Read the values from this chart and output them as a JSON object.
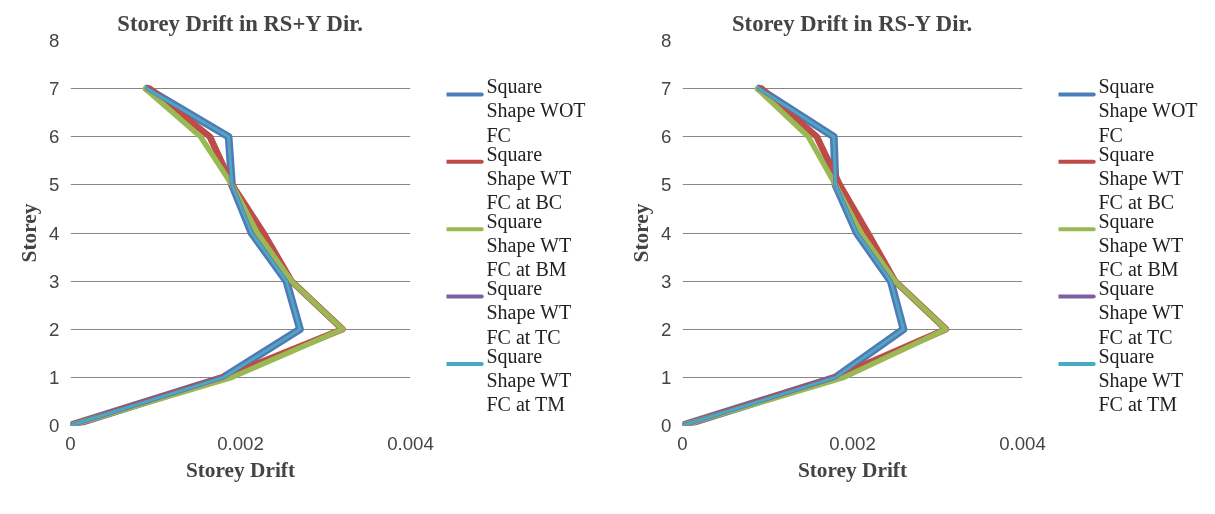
{
  "chart_data": [
    {
      "type": "line",
      "title": "Storey Drift in RS+Y Dir.",
      "xlabel": "Storey Drift",
      "ylabel": "Storey",
      "x": [
        0,
        1,
        2,
        3,
        4,
        5,
        6,
        7
      ],
      "xlim": [
        0,
        0.004
      ],
      "xticks": [
        0,
        0.002,
        0.004
      ],
      "ylim": [
        0,
        8
      ],
      "yticks": [
        0,
        1,
        2,
        3,
        4,
        5,
        6,
        7,
        8
      ],
      "grid": "y",
      "legend": "right",
      "orientation": "horizontal",
      "series": [
        {
          "name": "Square Shape WOT FC",
          "color": "#4a7ebb",
          "values": [
            0,
            0.0018,
            0.0027,
            0.00254,
            0.00213,
            0.0019,
            0.00186,
            0.0009
          ]
        },
        {
          "name": "Square Shape WT FC at BC",
          "color": "#be4b48",
          "values": [
            0,
            0.0018,
            0.0032,
            0.0026,
            0.00227,
            0.0019,
            0.00164,
            0.00093
          ]
        },
        {
          "name": "Square Shape WT FC at BM",
          "color": "#98b954",
          "values": [
            0,
            0.0019,
            0.0032,
            0.0026,
            0.0022,
            0.0019,
            0.00153,
            0.00088
          ]
        },
        {
          "name": "Square Shape WT FC at TC",
          "color": "#7d60a0",
          "values": [
            0,
            0.0018,
            0.0027,
            0.00254,
            0.00213,
            0.0019,
            0.00186,
            0.0009
          ]
        },
        {
          "name": "Square Shape WT FC at TM",
          "color": "#46aac5",
          "values": [
            0,
            0.0018,
            0.0027,
            0.00254,
            0.00213,
            0.0019,
            0.00186,
            0.0009
          ]
        }
      ]
    },
    {
      "type": "line",
      "title": "Storey Drift in RS-Y Dir.",
      "xlabel": "Storey Drift",
      "ylabel": "Storey",
      "x": [
        0,
        1,
        2,
        3,
        4,
        5,
        6,
        7
      ],
      "xlim": [
        0,
        0.004
      ],
      "xticks": [
        0,
        0.002,
        0.004
      ],
      "ylim": [
        0,
        8
      ],
      "yticks": [
        0,
        1,
        2,
        3,
        4,
        5,
        6,
        7,
        8
      ],
      "grid": "y",
      "legend": "right",
      "orientation": "horizontal",
      "series": [
        {
          "name": "Square Shape WOT FC",
          "color": "#4a7ebb",
          "values": [
            0,
            0.0018,
            0.0026,
            0.00245,
            0.00205,
            0.0018,
            0.00178,
            0.0009
          ]
        },
        {
          "name": "Square Shape WT FC at BC",
          "color": "#be4b48",
          "values": [
            0,
            0.0018,
            0.0031,
            0.0025,
            0.00218,
            0.00185,
            0.00158,
            0.00093
          ]
        },
        {
          "name": "Square Shape WT FC at BM",
          "color": "#98b954",
          "values": [
            0,
            0.0019,
            0.0031,
            0.0025,
            0.0021,
            0.0018,
            0.00148,
            0.00088
          ]
        },
        {
          "name": "Square Shape WT FC at TC",
          "color": "#7d60a0",
          "values": [
            0,
            0.0018,
            0.0026,
            0.00245,
            0.00205,
            0.0018,
            0.00178,
            0.0009
          ]
        },
        {
          "name": "Square Shape WT FC at TM",
          "color": "#46aac5",
          "values": [
            0,
            0.0018,
            0.0026,
            0.00245,
            0.00205,
            0.0018,
            0.00178,
            0.0009
          ]
        }
      ]
    }
  ]
}
